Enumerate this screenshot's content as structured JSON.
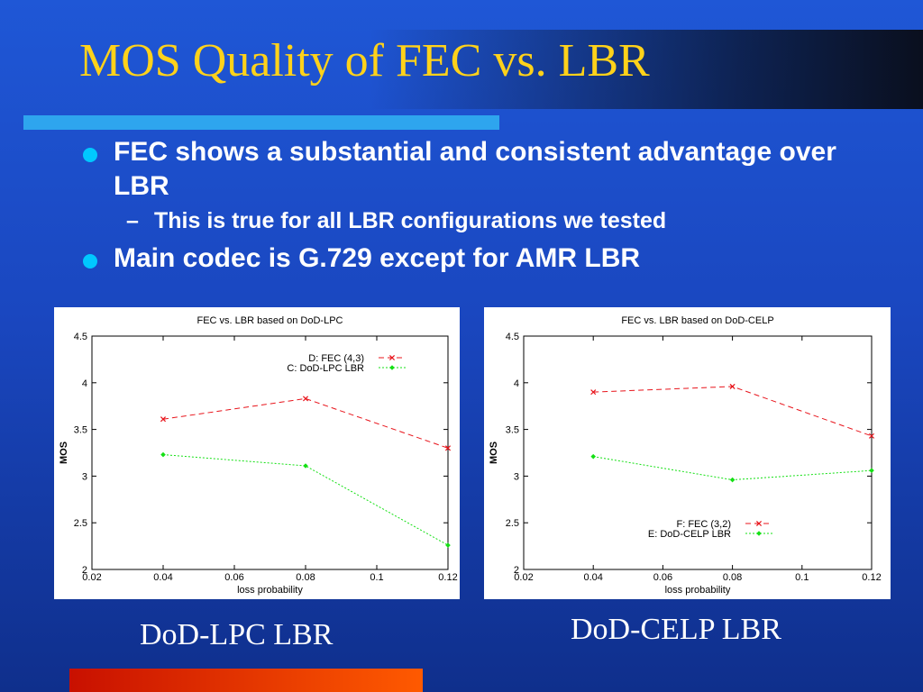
{
  "slide": {
    "title": "MOS Quality of FEC vs. LBR",
    "bullets": [
      {
        "text": "FEC shows a substantial and consistent advantage over LBR",
        "sub": [
          {
            "dash": "–",
            "text": "This is true for all LBR configurations we tested"
          }
        ]
      },
      {
        "text": "Main codec is G.729 except for AMR LBR",
        "sub": []
      }
    ],
    "captions": {
      "left": "DoD-LPC LBR",
      "right": "DoD-CELP LBR"
    },
    "colors": {
      "title": "#ffd21a",
      "bullet_dot": "#00c8ff",
      "rule": "#2ea5ee"
    }
  },
  "chart_data": [
    {
      "type": "line",
      "title": "FEC vs. LBR based on DoD-LPC",
      "xlabel": "loss probability",
      "ylabel": "MOS",
      "xlim": [
        0.02,
        0.12
      ],
      "ylim": [
        2,
        4.5
      ],
      "xticks": [
        "0.02",
        "0.04",
        "0.06",
        "0.08",
        "0.1",
        "0.12"
      ],
      "yticks": [
        "2",
        "2.5",
        "3",
        "3.5",
        "4",
        "4.5"
      ],
      "grid": false,
      "legend_position": "top-right",
      "series": [
        {
          "name": "D: FEC (4,3)",
          "color": "#e8141b",
          "marker": "x",
          "dash": "dashed",
          "x": [
            0.04,
            0.08,
            0.12
          ],
          "y": [
            3.61,
            3.83,
            3.3
          ]
        },
        {
          "name": "C: DoD-LPC LBR",
          "color": "#14e014",
          "marker": "diamond",
          "dash": "dotted",
          "x": [
            0.04,
            0.08,
            0.12
          ],
          "y": [
            3.23,
            3.11,
            2.26
          ]
        }
      ]
    },
    {
      "type": "line",
      "title": "FEC vs. LBR based on DoD-CELP",
      "xlabel": "loss probability",
      "ylabel": "MOS",
      "xlim": [
        0.02,
        0.12
      ],
      "ylim": [
        2,
        4.5
      ],
      "xticks": [
        "0.02",
        "0.04",
        "0.06",
        "0.08",
        "0.1",
        "0.12"
      ],
      "yticks": [
        "2",
        "2.5",
        "3",
        "3.5",
        "4",
        "4.5"
      ],
      "grid": false,
      "legend_position": "bottom-right",
      "series": [
        {
          "name": "F: FEC (3,2)",
          "color": "#e8141b",
          "marker": "x",
          "dash": "dashed",
          "x": [
            0.04,
            0.08,
            0.12
          ],
          "y": [
            3.9,
            3.96,
            3.43
          ]
        },
        {
          "name": "E: DoD-CELP LBR",
          "color": "#14e014",
          "marker": "diamond",
          "dash": "dotted",
          "x": [
            0.04,
            0.08,
            0.12
          ],
          "y": [
            3.21,
            2.96,
            3.06
          ]
        }
      ]
    }
  ]
}
